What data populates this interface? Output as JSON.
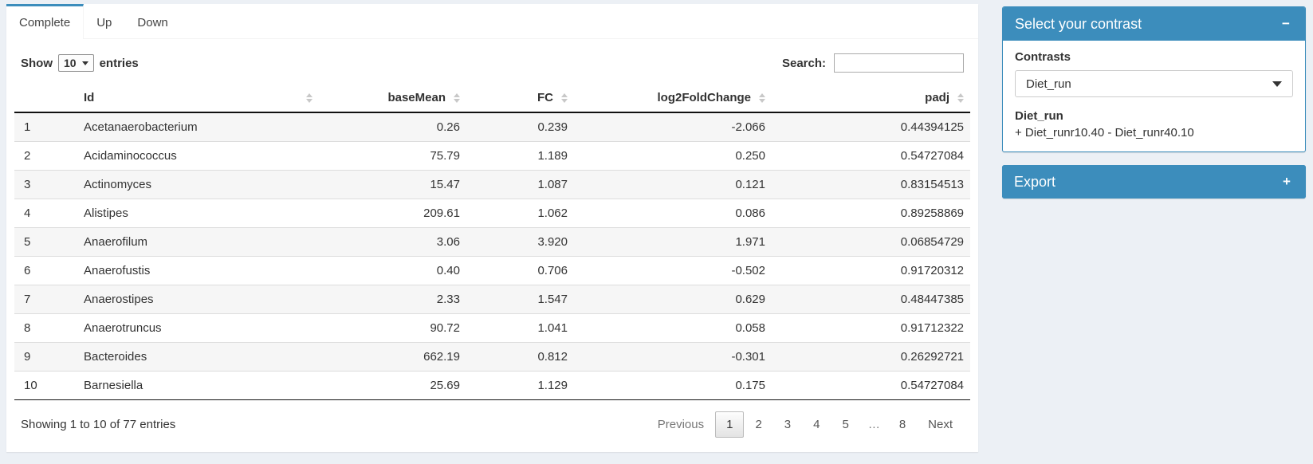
{
  "tabs": [
    {
      "label": "Complete",
      "active": true
    },
    {
      "label": "Up",
      "active": false
    },
    {
      "label": "Down",
      "active": false
    }
  ],
  "controls": {
    "show_label": "Show",
    "page_length": "10",
    "entries_label": "entries",
    "search_label": "Search:",
    "search_value": ""
  },
  "table": {
    "columns": [
      {
        "label": "",
        "align": "left",
        "sortable": false
      },
      {
        "label": "Id",
        "align": "left",
        "sortable": true
      },
      {
        "label": "baseMean",
        "align": "right",
        "sortable": true
      },
      {
        "label": "FC",
        "align": "right",
        "sortable": true
      },
      {
        "label": "log2FoldChange",
        "align": "right",
        "sortable": true
      },
      {
        "label": "padj",
        "align": "right",
        "sortable": true
      }
    ],
    "rows": [
      [
        "1",
        "Acetanaerobacterium",
        "0.26",
        "0.239",
        "-2.066",
        "0.44394125"
      ],
      [
        "2",
        "Acidaminococcus",
        "75.79",
        "1.189",
        "0.250",
        "0.54727084"
      ],
      [
        "3",
        "Actinomyces",
        "15.47",
        "1.087",
        "0.121",
        "0.83154513"
      ],
      [
        "4",
        "Alistipes",
        "209.61",
        "1.062",
        "0.086",
        "0.89258869"
      ],
      [
        "5",
        "Anaerofilum",
        "3.06",
        "3.920",
        "1.971",
        "0.06854729"
      ],
      [
        "6",
        "Anaerofustis",
        "0.40",
        "0.706",
        "-0.502",
        "0.91720312"
      ],
      [
        "7",
        "Anaerostipes",
        "2.33",
        "1.547",
        "0.629",
        "0.48447385"
      ],
      [
        "8",
        "Anaerotruncus",
        "90.72",
        "1.041",
        "0.058",
        "0.91712322"
      ],
      [
        "9",
        "Bacteroides",
        "662.19",
        "0.812",
        "-0.301",
        "0.26292721"
      ],
      [
        "10",
        "Barnesiella",
        "25.69",
        "1.129",
        "0.175",
        "0.54727084"
      ]
    ],
    "info": "Showing 1 to 10 of 77 entries",
    "pagination": {
      "previous": "Previous",
      "pages": [
        "1",
        "2",
        "3",
        "4",
        "5",
        "…",
        "8"
      ],
      "current": "1",
      "next": "Next"
    }
  },
  "contrast_box": {
    "title": "Select your contrast",
    "collapse_icon": "−",
    "contrasts_label": "Contrasts",
    "selected_contrast": "Diet_run",
    "contrast_name": "Diet_run",
    "contrast_formula": "+ Diet_runr10.40 - Diet_runr40.10"
  },
  "export_box": {
    "title": "Export",
    "expand_icon": "+"
  },
  "colors": {
    "accent": "#3c8dbc",
    "page_bg": "#ecf0f5"
  }
}
